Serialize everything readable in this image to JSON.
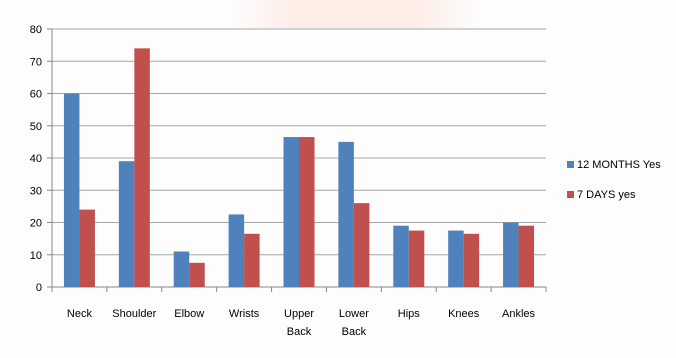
{
  "chart_data": {
    "type": "bar",
    "title": "",
    "xlabel": "",
    "ylabel": "",
    "categories": [
      "Neck",
      "Shoulder",
      "Elbow",
      "Wrists",
      "Upper Back",
      "Lower Back",
      "Hips",
      "Knees",
      "Ankles"
    ],
    "series": [
      {
        "name": "12 MONTHS Yes",
        "color": "#4f81bd",
        "values": [
          60,
          39,
          11,
          22.5,
          46.5,
          45,
          19,
          17.5,
          20
        ]
      },
      {
        "name": "7 DAYS yes",
        "color": "#c0504d",
        "values": [
          24,
          74,
          7.5,
          16.5,
          46.5,
          26,
          17.5,
          16.5,
          19
        ]
      }
    ],
    "ylim": [
      0,
      80
    ],
    "yticks": [
      0,
      10,
      20,
      30,
      40,
      50,
      60,
      70,
      80
    ],
    "grid": true,
    "legend": "right"
  }
}
